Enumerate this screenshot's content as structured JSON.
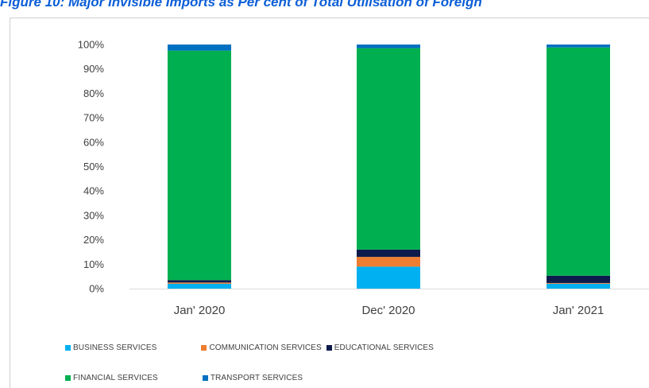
{
  "figure": {
    "title": "Figure 10: Major Invisible Imports as Per cent of Total Utilisation of Foreign"
  },
  "chart_data": {
    "type": "bar",
    "stacked": true,
    "percent_stacked": true,
    "categories": [
      "Jan' 2020",
      "Dec' 2020",
      "Jan' 2021"
    ],
    "series": [
      {
        "name": "BUSINESS SERVICES",
        "color": "#00b0f0",
        "values": [
          2,
          9,
          2
        ]
      },
      {
        "name": "COMMUNICATION SERVICES",
        "color": "#ed7d31",
        "values": [
          0.5,
          4,
          0.3
        ]
      },
      {
        "name": "EDUCATIONAL SERVICES",
        "color": "#0d1b4c",
        "values": [
          1,
          3,
          3
        ]
      },
      {
        "name": "FINANCIAL SERVICES",
        "color": "#00b050",
        "values": [
          94,
          82.5,
          93.5
        ]
      },
      {
        "name": "TRANSPORT SERVICES",
        "color": "#0070c0",
        "values": [
          2.5,
          1.5,
          1.2
        ]
      }
    ],
    "ylim": [
      0,
      100
    ],
    "yticks": [
      "0%",
      "10%",
      "20%",
      "30%",
      "40%",
      "50%",
      "60%",
      "70%",
      "80%",
      "90%",
      "100%"
    ],
    "grid": false,
    "legend_position": "bottom"
  }
}
